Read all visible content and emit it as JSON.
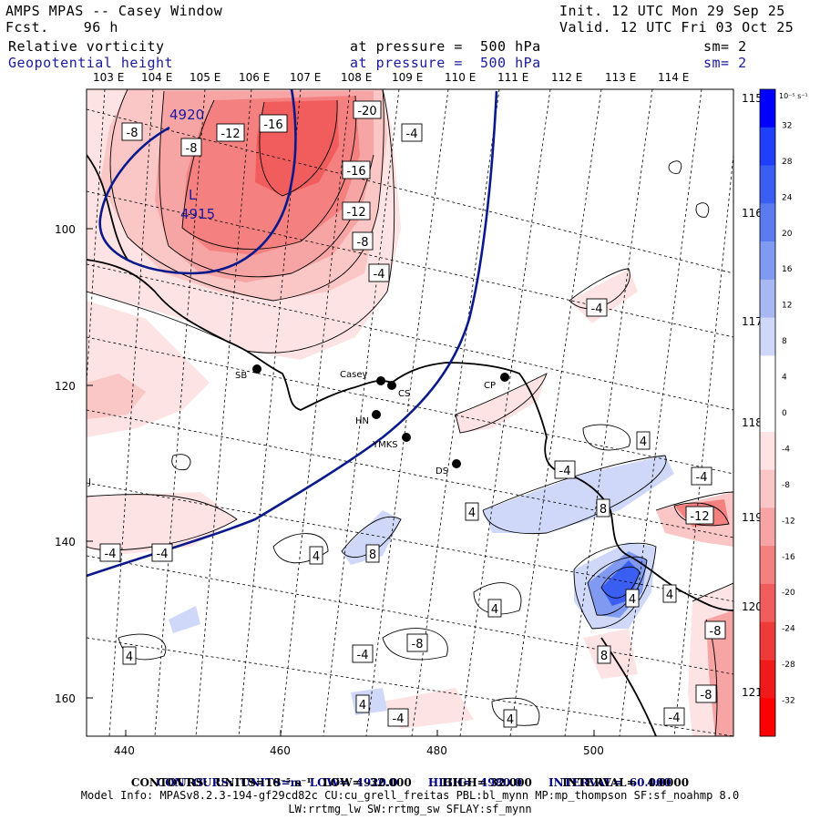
{
  "header": {
    "title": "AMPS MPAS -- Casey Window",
    "forecast": "Fcst.    96 h",
    "init": "Init. 12 UTC Mon 29 Sep 25",
    "valid": "Valid. 12 UTC Fri 03 Oct 25",
    "field1_name": "Relative vorticity",
    "field1_pressure": "at pressure =  500 hPa",
    "field1_sm": "sm= 2",
    "field2_name": "Geopotential height",
    "field2_pressure": "at pressure =  500 hPa",
    "field2_sm": "sm= 2"
  },
  "map": {
    "top_lon_labels": [
      "103 E",
      "104 E",
      "105 E",
      "106 E",
      "107 E",
      "108 E",
      "109 E",
      "110 E",
      "111 E",
      "112 E",
      "113 E",
      "114 E"
    ],
    "right_lon_labels": [
      "115 E",
      "116 E",
      "117 E",
      "118 E",
      "119 E",
      "120 E",
      "121 E"
    ],
    "left_axis": [
      "100",
      "120",
      "140",
      "160"
    ],
    "bottom_axis": [
      "440",
      "460",
      "480",
      "500"
    ],
    "left_marker": "J",
    "stations": [
      {
        "name": "SB",
        "lbl": "SB"
      },
      {
        "name": "Casey",
        "lbl": "Casey"
      },
      {
        "name": "CS",
        "lbl": "CS"
      },
      {
        "name": "HN",
        "lbl": "HN"
      },
      {
        "name": "YMKS",
        "lbl": "YMKS"
      },
      {
        "name": "DS",
        "lbl": "DS"
      },
      {
        "name": "CP",
        "lbl": "CP"
      }
    ],
    "height_labels": {
      "h1": "4920",
      "low": "L",
      "low_value": "4915"
    },
    "vort_labels": [
      "-8",
      "-8",
      "-12",
      "-16",
      "-20",
      "-4",
      "-16",
      "-12",
      "-8",
      "-4",
      "-4",
      "4",
      "-4",
      "-4",
      "8",
      "4",
      "-12",
      "-4",
      "-4",
      "4",
      "8",
      "4",
      "4",
      "4",
      "-8",
      "4",
      "-4",
      "-8",
      "8",
      "4",
      "-4",
      "4",
      "-4",
      "-8"
    ]
  },
  "colorbar": {
    "unit": "10⁻⁵ s⁻¹",
    "ticks": [
      "32",
      "28",
      "24",
      "20",
      "16",
      "12",
      "8",
      "4",
      "0",
      "-4",
      "-8",
      "-12",
      "-16",
      "-20",
      "-24",
      "-28",
      "-32"
    ],
    "colors": [
      "#0000ff",
      "#1f3ff8",
      "#3a5ef2",
      "#5a7cf0",
      "#7f9af0",
      "#a7b8f3",
      "#cfd8f8",
      "#ffffff",
      "#ffffff",
      "#fde3e3",
      "#fac6c6",
      "#f7a4a4",
      "#f48080",
      "#f15c5c",
      "#ef3a3a",
      "#f01a1a",
      "#ff0000"
    ]
  },
  "footer": {
    "line1_contours": "CONTOURS:",
    "line1_units": "UNITS=m",
    "line1_low": "LOW=",
    "line1_low_val": "4920.0",
    "line1_high": "HIGH=",
    "line1_high_val": "4980.0",
    "line1_interval": "INTERVAL=",
    "line1_interval_val": "60.000",
    "line2": "CONTOURS:  UNITS=10⁻⁵ s⁻¹   LOW= -32.000        HIGH= 32.000        INTERVAL=   4.0000",
    "info1": "Model Info: MPASv8.2.3-194-gf29cd82c CU:cu_grell_freitas PBL:bl_mynn MP:mp_thompson SF:sf_noahmp 8.0",
    "info2": "LW:rrtmg_lw SW:rrtmg_sw SFLAY:sf_mynn"
  }
}
